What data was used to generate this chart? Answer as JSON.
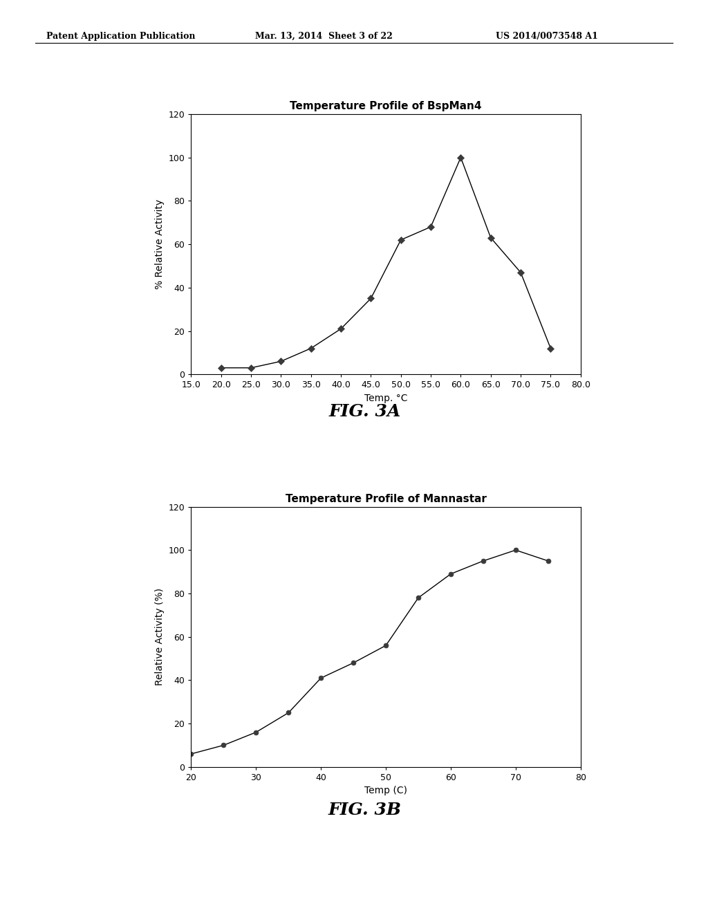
{
  "header_left": "Patent Application Publication",
  "header_mid": "Mar. 13, 2014  Sheet 3 of 22",
  "header_right": "US 2014/0073548 A1",
  "fig3a": {
    "title": "Temperature Profile of BspMan4",
    "xlabel": "Temp. °C",
    "ylabel": "% Relative Activity",
    "x": [
      20.0,
      25.0,
      30.0,
      35.0,
      40.0,
      45.0,
      50.0,
      55.0,
      60.0,
      65.0,
      70.0,
      75.0
    ],
    "y": [
      3,
      3,
      6,
      12,
      21,
      35,
      62,
      68,
      100,
      63,
      47,
      12
    ],
    "xlim": [
      15.0,
      80.0
    ],
    "ylim": [
      0,
      120
    ],
    "xticks": [
      15.0,
      20.0,
      25.0,
      30.0,
      35.0,
      40.0,
      45.0,
      50.0,
      55.0,
      60.0,
      65.0,
      70.0,
      75.0,
      80.0
    ],
    "yticks": [
      0,
      20,
      40,
      60,
      80,
      100,
      120
    ],
    "fig_label": "FIG. 3A"
  },
  "fig3b": {
    "title": "Temperature Profile of Mannastar",
    "xlabel": "Temp (C)",
    "ylabel": "Relative Activity (%)",
    "x": [
      20,
      25,
      30,
      35,
      40,
      45,
      50,
      55,
      60,
      65,
      70,
      75
    ],
    "y": [
      6,
      10,
      16,
      25,
      41,
      48,
      56,
      78,
      89,
      95,
      100,
      95
    ],
    "xlim": [
      20,
      80
    ],
    "ylim": [
      0,
      120
    ],
    "xticks": [
      20,
      30,
      40,
      50,
      60,
      70,
      80
    ],
    "yticks": [
      0,
      20,
      40,
      60,
      80,
      100,
      120
    ],
    "fig_label": "FIG. 3B"
  },
  "bg_color": "#ffffff",
  "line_color": "#000000",
  "marker_color": "#3a3a3a",
  "title_fontsize": 11,
  "label_fontsize": 10,
  "tick_fontsize": 9,
  "fig_label_fontsize": 18,
  "header_fontsize": 9
}
